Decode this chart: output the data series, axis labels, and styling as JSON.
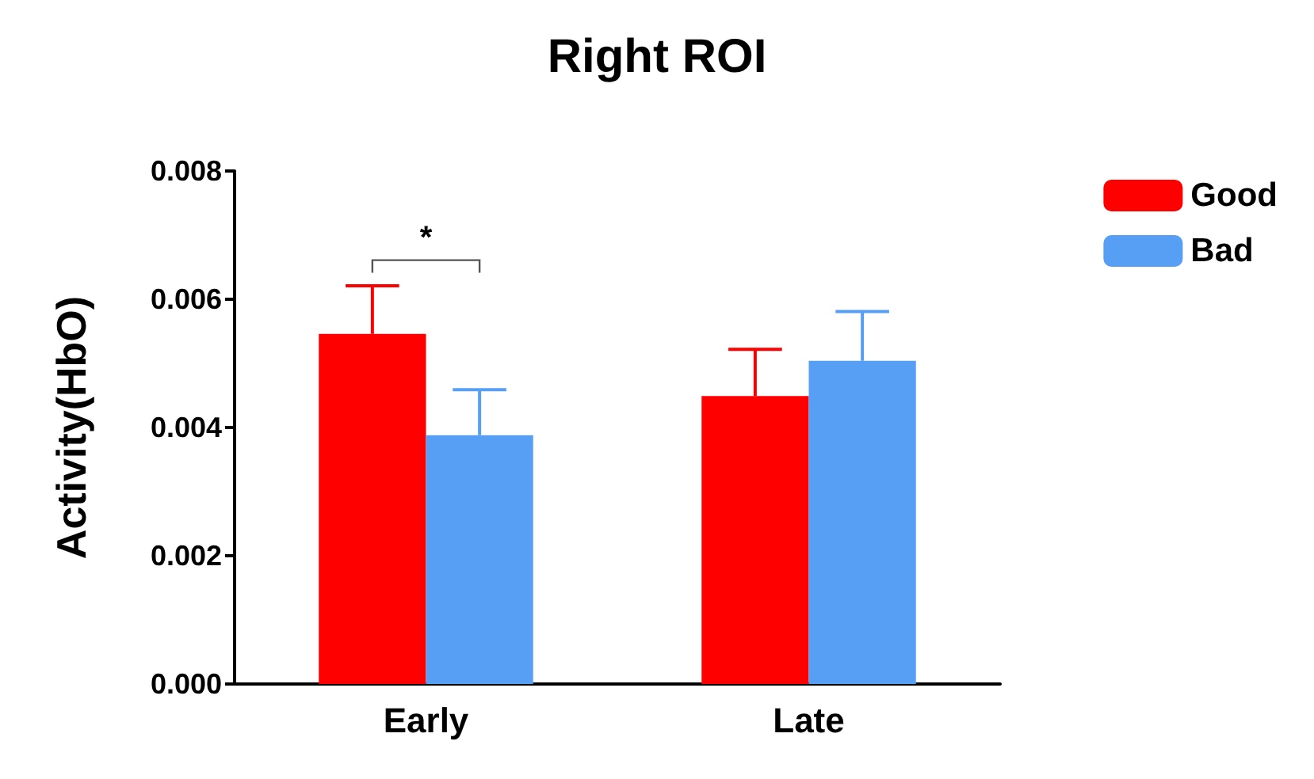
{
  "chart_data": {
    "type": "bar",
    "title": "Right ROI",
    "ylabel": "Activity(HbO)",
    "categories": [
      "Early",
      "Late"
    ],
    "series": [
      {
        "name": "Good",
        "color": "#ff0000",
        "values": [
          0.00546,
          0.00449
        ],
        "errors": [
          [
            0.00546,
            0.00621
          ],
          [
            0.00449,
            0.00522
          ]
        ]
      },
      {
        "name": "Bad",
        "color": "#569ff5",
        "values": [
          0.00388,
          0.00504
        ],
        "errors": [
          [
            0.00388,
            0.00459
          ],
          [
            0.00504,
            0.00581
          ]
        ]
      }
    ],
    "ylim": [
      0,
      0.008
    ],
    "yticks": [
      {
        "value": 0,
        "label": "0.000"
      },
      {
        "value": 0.002,
        "label": "0.002"
      },
      {
        "value": 0.004,
        "label": "0.004"
      },
      {
        "value": 0.006,
        "label": "0.006"
      },
      {
        "value": 0.008,
        "label": "0.008"
      }
    ],
    "annotations": [
      "*"
    ],
    "grid": false,
    "legend": "top right"
  }
}
